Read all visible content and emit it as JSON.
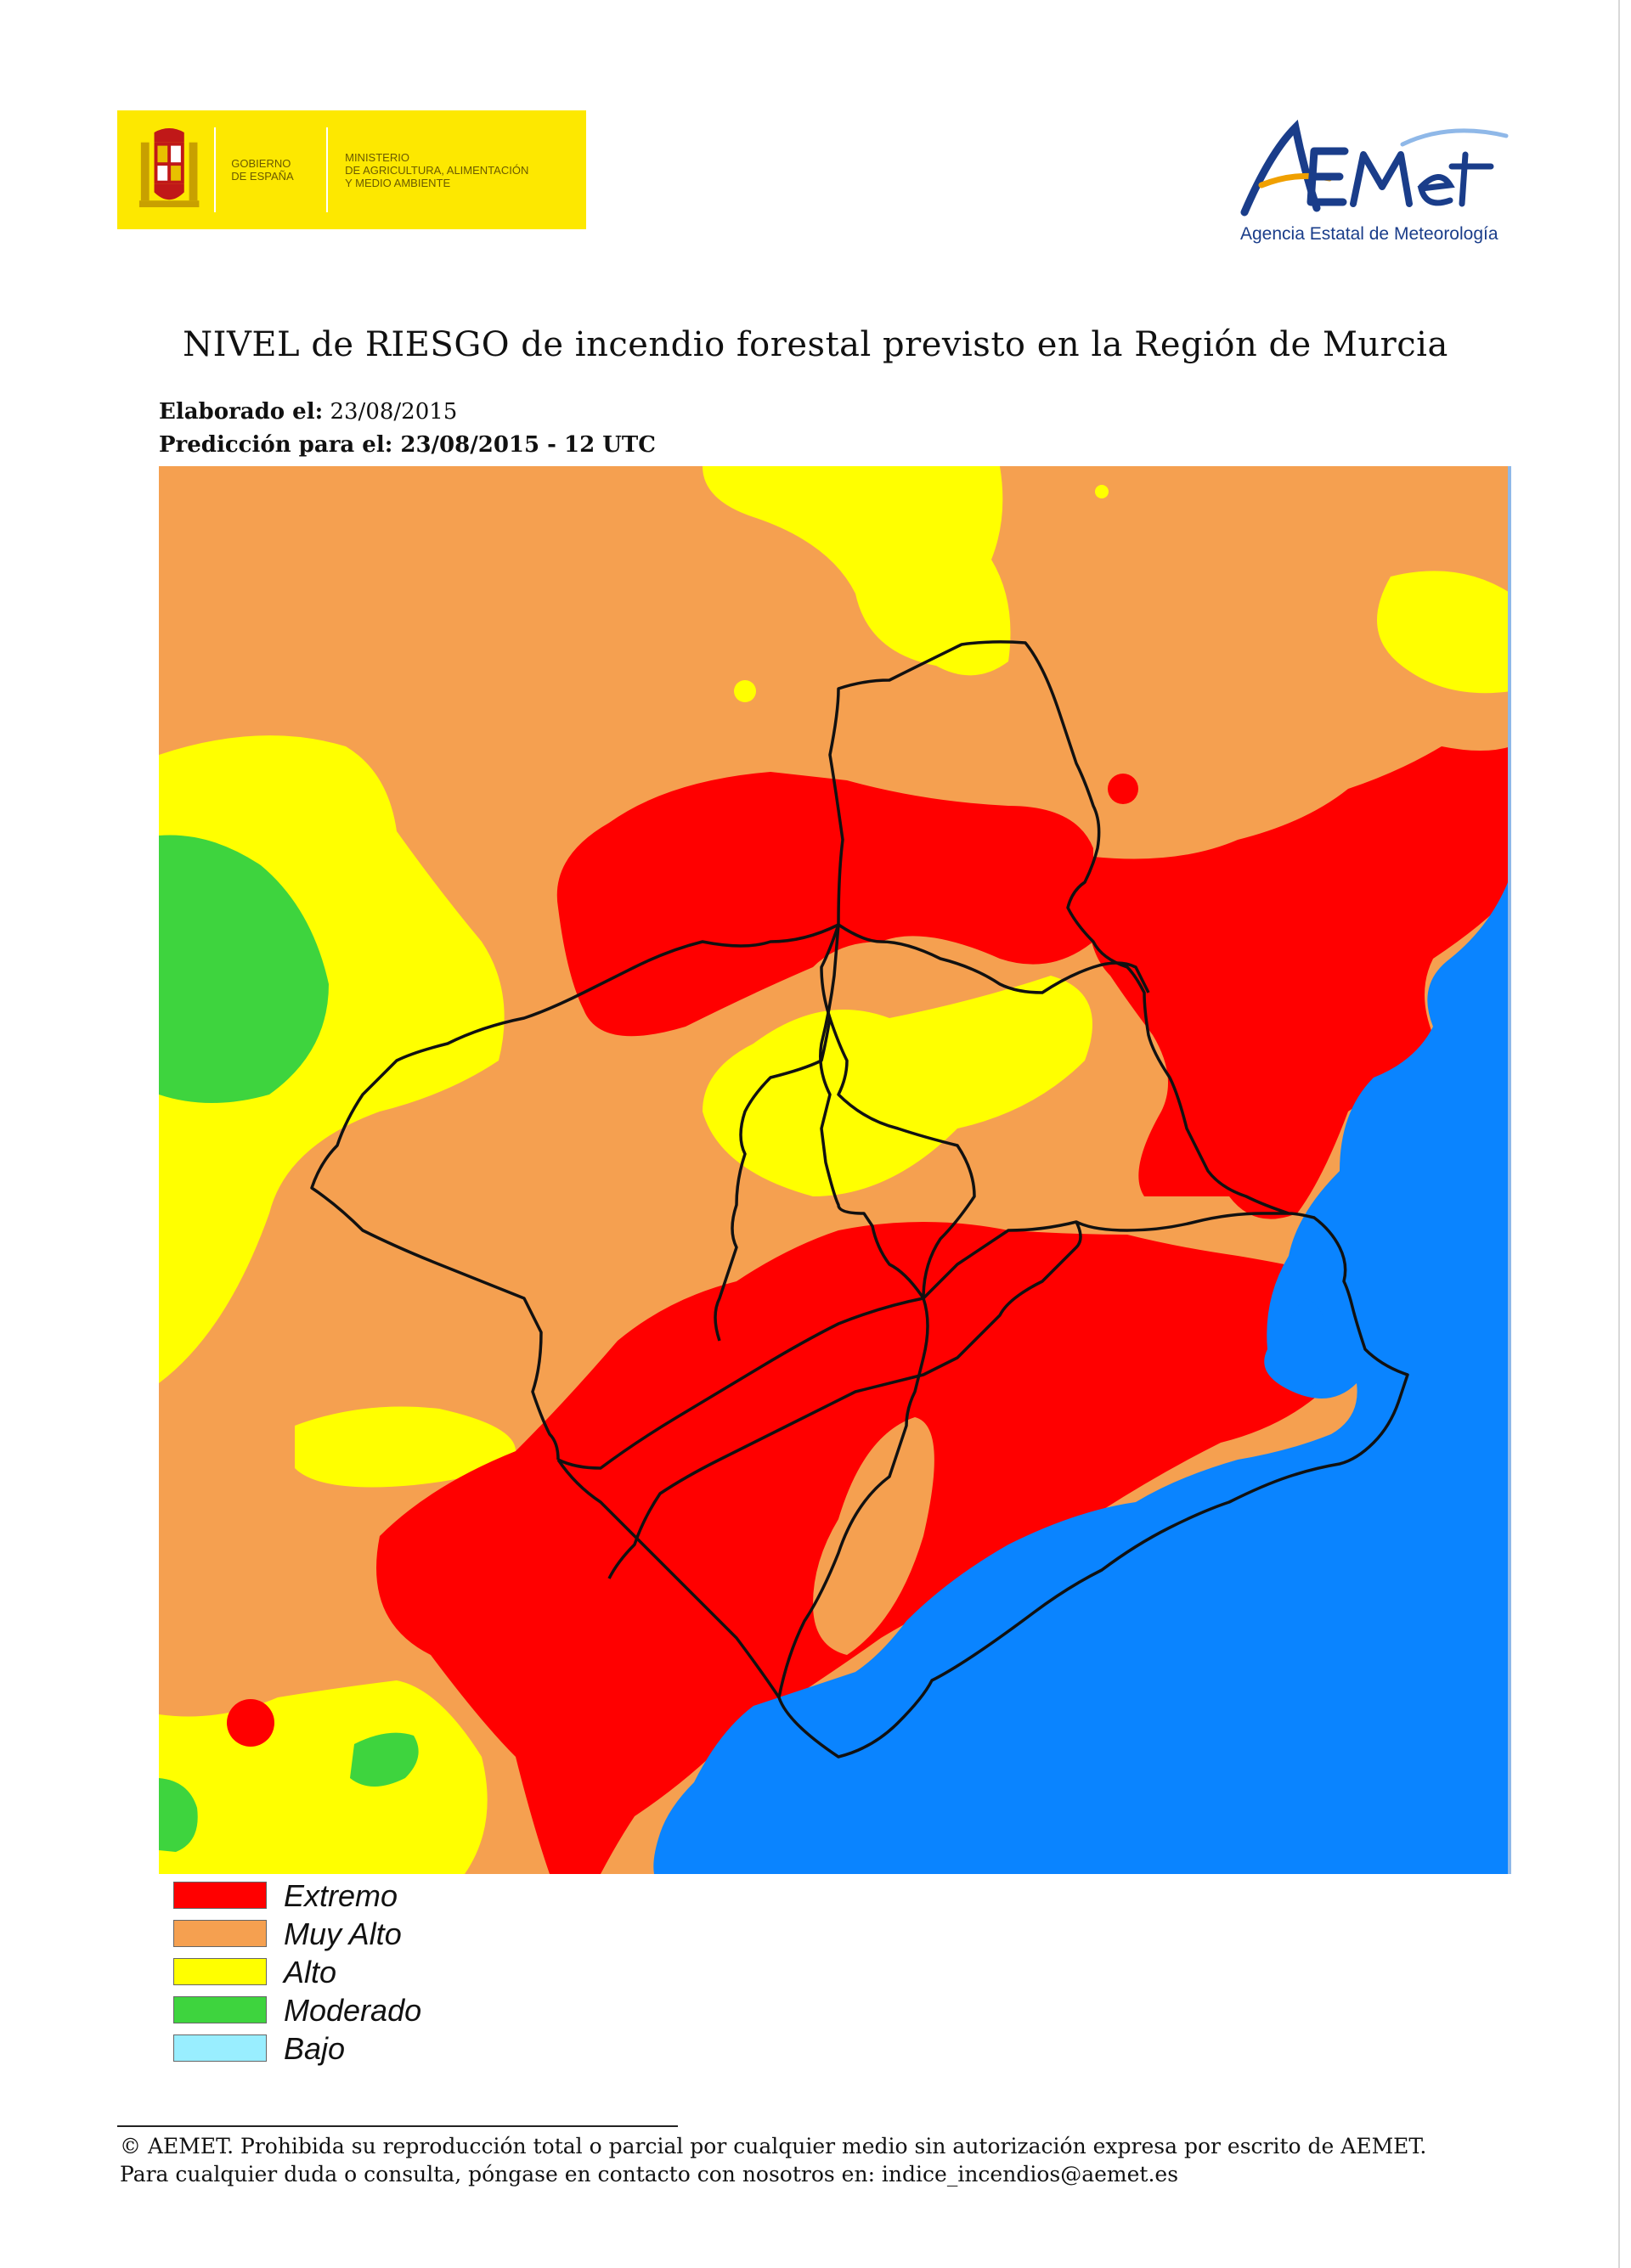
{
  "header": {
    "gov_logo": {
      "line1": "GOBIERNO\nDE ESPAÑA",
      "line2": "MINISTERIO\nDE AGRICULTURA, ALIMENTACIÓN\nY MEDIO AMBIENTE"
    },
    "aemet_logo": {
      "wordmark": "AEMet",
      "subtitle": "Agencia Estatal de Meteorología"
    }
  },
  "title": "NIVEL de RIESGO de incendio forestal previsto en la Región de Murcia",
  "meta": {
    "elaborado_label": "Elaborado el:",
    "elaborado_date": "23/08/2015",
    "prediccion": "Predicción para el: 23/08/2015 - 12 UTC"
  },
  "map": {
    "region": "Región de Murcia",
    "colors": {
      "extremo": "#ff0000",
      "muy_alto": "#f5a050",
      "alto": "#ffff00",
      "moderado": "#3ed43e",
      "bajo": "#99eeff",
      "sea": "#0a84ff",
      "border": "#111111"
    }
  },
  "legend": [
    {
      "label": "Extremo",
      "color": "#ff0000"
    },
    {
      "label": "Muy Alto",
      "color": "#f5a050"
    },
    {
      "label": "Alto",
      "color": "#ffff00"
    },
    {
      "label": "Moderado",
      "color": "#3ed43e"
    },
    {
      "label": "Bajo",
      "color": "#99eeff"
    }
  ],
  "footer": {
    "line1": "© AEMET. Prohibida su reproducción total o parcial por cualquier medio sin autorización expresa por escrito de AEMET.",
    "line2": "Para cualquier duda o consulta, póngase en contacto con nosotros en: indice_incendios@aemet.es"
  }
}
